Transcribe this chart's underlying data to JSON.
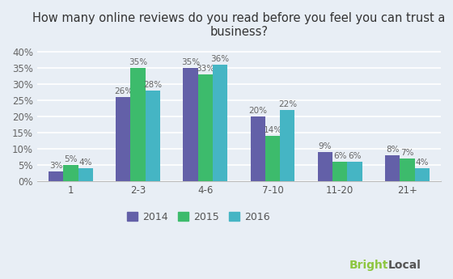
{
  "title": "How many online reviews do you read before you feel you can trust a\nbusiness?",
  "categories": [
    "1",
    "2-3",
    "4-6",
    "7-10",
    "11-20",
    "21+"
  ],
  "series": {
    "2014": [
      3,
      26,
      35,
      20,
      9,
      8
    ],
    "2015": [
      5,
      35,
      33,
      14,
      6,
      7
    ],
    "2016": [
      4,
      28,
      36,
      22,
      6,
      4
    ]
  },
  "colors": {
    "2014": "#6360a8",
    "2015": "#3dbb6c",
    "2016": "#45b5c4"
  },
  "ylim": [
    0,
    42
  ],
  "yticks": [
    0,
    5,
    10,
    15,
    20,
    25,
    30,
    35,
    40
  ],
  "ytick_labels": [
    "0%",
    "5%",
    "10%",
    "15%",
    "20%",
    "25%",
    "30%",
    "35%",
    "40%"
  ],
  "background_color": "#e8eef5",
  "bar_width": 0.22,
  "title_fontsize": 10.5,
  "tick_fontsize": 8.5,
  "label_fontsize": 7.5,
  "legend_fontsize": 9,
  "brightlocal_green": "#8dc63f",
  "brightlocal_dark": "#555555"
}
